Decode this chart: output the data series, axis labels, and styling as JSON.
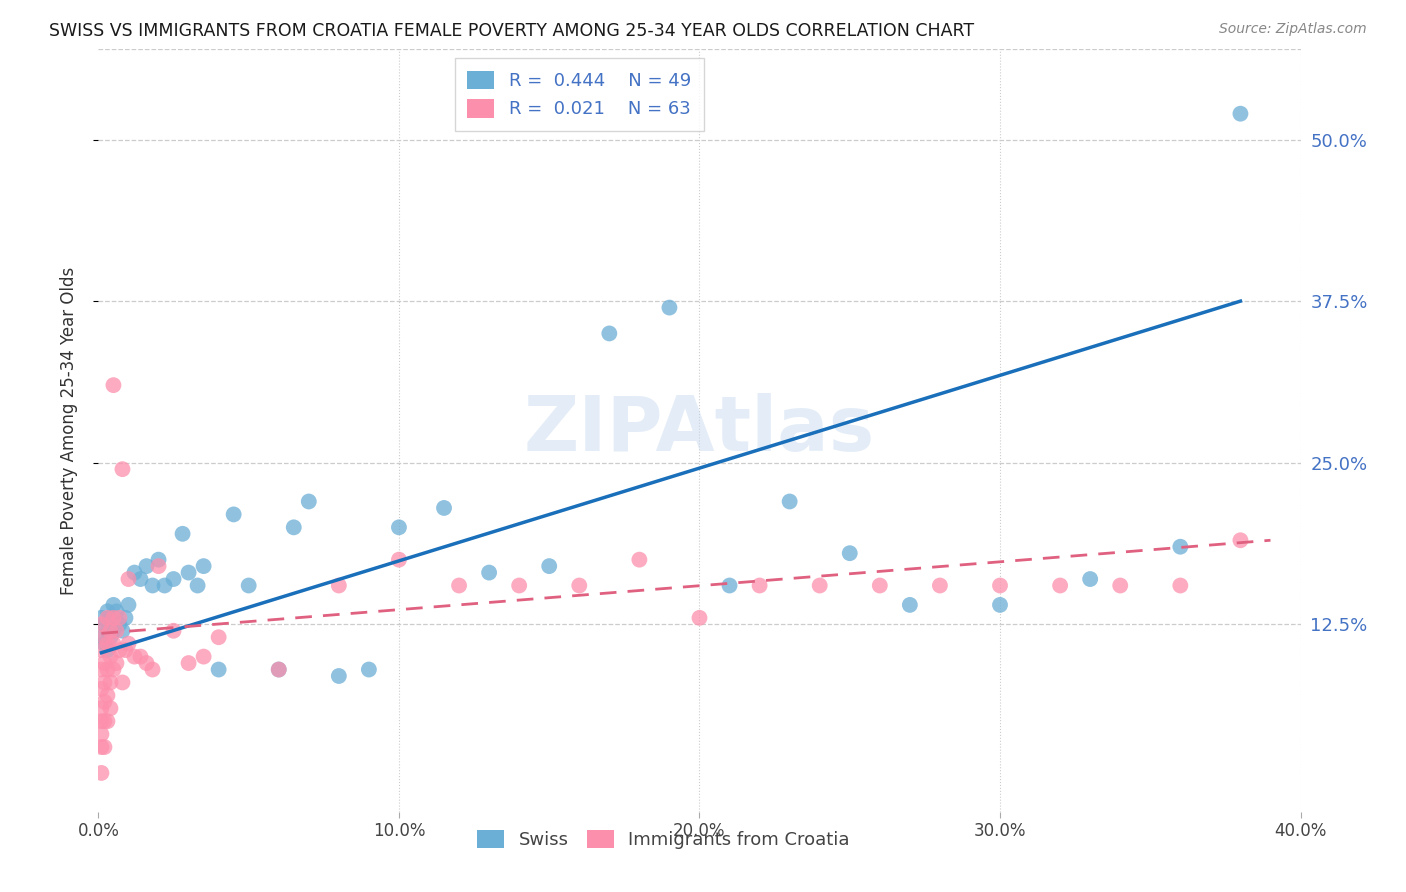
{
  "title": "SWISS VS IMMIGRANTS FROM CROATIA FEMALE POVERTY AMONG 25-34 YEAR OLDS CORRELATION CHART",
  "source": "Source: ZipAtlas.com",
  "ylabel": "Female Poverty Among 25-34 Year Olds",
  "xlim": [
    0,
    0.4
  ],
  "ylim": [
    -0.02,
    0.57
  ],
  "yticks": [
    0.125,
    0.25,
    0.375,
    0.5
  ],
  "ytick_labels": [
    "12.5%",
    "25.0%",
    "37.5%",
    "50.0%"
  ],
  "xticks": [
    0.0,
    0.1,
    0.2,
    0.3,
    0.4
  ],
  "xtick_labels": [
    "0.0%",
    "10.0%",
    "20.0%",
    "30.0%",
    "40.0%"
  ],
  "watermark": "ZIPAtlas",
  "legend_swiss_R": "0.444",
  "legend_swiss_N": "49",
  "legend_croatia_R": "0.021",
  "legend_croatia_N": "63",
  "swiss_color": "#6baed6",
  "croatia_color": "#fc8fac",
  "swiss_line_color": "#1a6fba",
  "croatia_line_color": "#e06080",
  "background_color": "#ffffff",
  "grid_color": "#cccccc",
  "swiss_x": [
    0.001,
    0.001,
    0.002,
    0.002,
    0.003,
    0.003,
    0.003,
    0.004,
    0.004,
    0.005,
    0.005,
    0.006,
    0.007,
    0.008,
    0.009,
    0.01,
    0.012,
    0.014,
    0.016,
    0.018,
    0.02,
    0.022,
    0.025,
    0.028,
    0.03,
    0.033,
    0.035,
    0.04,
    0.045,
    0.05,
    0.06,
    0.065,
    0.07,
    0.08,
    0.09,
    0.1,
    0.115,
    0.13,
    0.15,
    0.17,
    0.19,
    0.21,
    0.23,
    0.25,
    0.27,
    0.3,
    0.33,
    0.36,
    0.38
  ],
  "swiss_y": [
    0.13,
    0.115,
    0.125,
    0.11,
    0.135,
    0.12,
    0.105,
    0.13,
    0.115,
    0.14,
    0.12,
    0.135,
    0.125,
    0.12,
    0.13,
    0.14,
    0.165,
    0.16,
    0.17,
    0.155,
    0.175,
    0.155,
    0.16,
    0.195,
    0.165,
    0.155,
    0.17,
    0.09,
    0.21,
    0.155,
    0.09,
    0.2,
    0.22,
    0.085,
    0.09,
    0.2,
    0.215,
    0.165,
    0.17,
    0.35,
    0.37,
    0.155,
    0.22,
    0.18,
    0.14,
    0.14,
    0.16,
    0.185,
    0.52
  ],
  "croatia_x": [
    0.001,
    0.001,
    0.001,
    0.001,
    0.001,
    0.001,
    0.001,
    0.001,
    0.001,
    0.002,
    0.002,
    0.002,
    0.002,
    0.002,
    0.002,
    0.003,
    0.003,
    0.003,
    0.003,
    0.003,
    0.004,
    0.004,
    0.004,
    0.004,
    0.005,
    0.005,
    0.005,
    0.006,
    0.006,
    0.007,
    0.007,
    0.008,
    0.009,
    0.01,
    0.012,
    0.014,
    0.016,
    0.018,
    0.02,
    0.025,
    0.03,
    0.035,
    0.04,
    0.06,
    0.08,
    0.1,
    0.12,
    0.14,
    0.16,
    0.18,
    0.2,
    0.22,
    0.24,
    0.26,
    0.28,
    0.3,
    0.32,
    0.34,
    0.36,
    0.38,
    0.005,
    0.008,
    0.01
  ],
  "croatia_y": [
    0.125,
    0.105,
    0.09,
    0.075,
    0.06,
    0.05,
    0.04,
    0.03,
    0.01,
    0.115,
    0.095,
    0.08,
    0.065,
    0.05,
    0.03,
    0.13,
    0.11,
    0.09,
    0.07,
    0.05,
    0.12,
    0.1,
    0.08,
    0.06,
    0.13,
    0.11,
    0.09,
    0.12,
    0.095,
    0.13,
    0.105,
    0.08,
    0.105,
    0.11,
    0.1,
    0.1,
    0.095,
    0.09,
    0.17,
    0.12,
    0.095,
    0.1,
    0.115,
    0.09,
    0.155,
    0.175,
    0.155,
    0.155,
    0.155,
    0.175,
    0.13,
    0.155,
    0.155,
    0.155,
    0.155,
    0.155,
    0.155,
    0.155,
    0.155,
    0.19,
    0.31,
    0.245,
    0.16
  ],
  "swiss_trendline_x": [
    0.001,
    0.38
  ],
  "swiss_trendline_y": [
    0.103,
    0.375
  ],
  "croatia_trendline_x": [
    0.001,
    0.39
  ],
  "croatia_trendline_y": [
    0.118,
    0.19
  ]
}
